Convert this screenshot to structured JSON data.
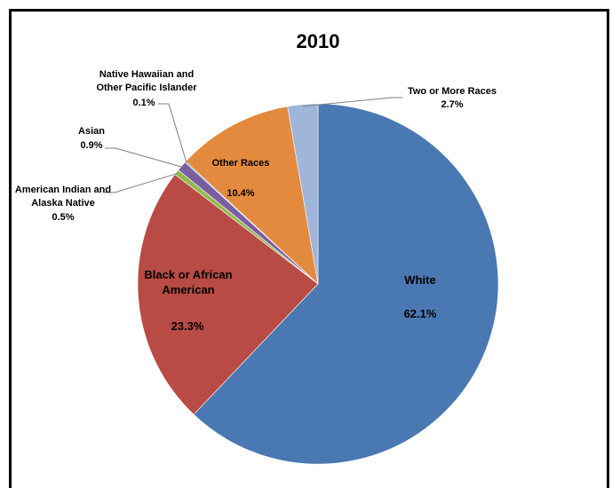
{
  "chart_data": {
    "type": "pie",
    "title": "2010",
    "slices": [
      {
        "label": "White",
        "value": 62.1,
        "value_label": "62.1%",
        "color": "#4a78b2"
      },
      {
        "label": "Black or African American",
        "value": 23.3,
        "value_label": "23.3%",
        "color": "#b84b45"
      },
      {
        "label": "American Indian and Alaska Native",
        "value": 0.5,
        "value_label": "0.5%",
        "color": "#96b94e"
      },
      {
        "label": "Asian",
        "value": 0.9,
        "value_label": "0.9%",
        "color": "#7a5ea0"
      },
      {
        "label": "Native Hawaiian and Other Pacific Islander",
        "value": 0.1,
        "value_label": "0.1%",
        "color": "#3fa7bd"
      },
      {
        "label": "Other Races",
        "value": 10.4,
        "value_label": "10.4%",
        "color": "#e38a3f"
      },
      {
        "label": "Two or More Races",
        "value": 2.7,
        "value_label": "2.7%",
        "color": "#9fb5da"
      }
    ]
  }
}
